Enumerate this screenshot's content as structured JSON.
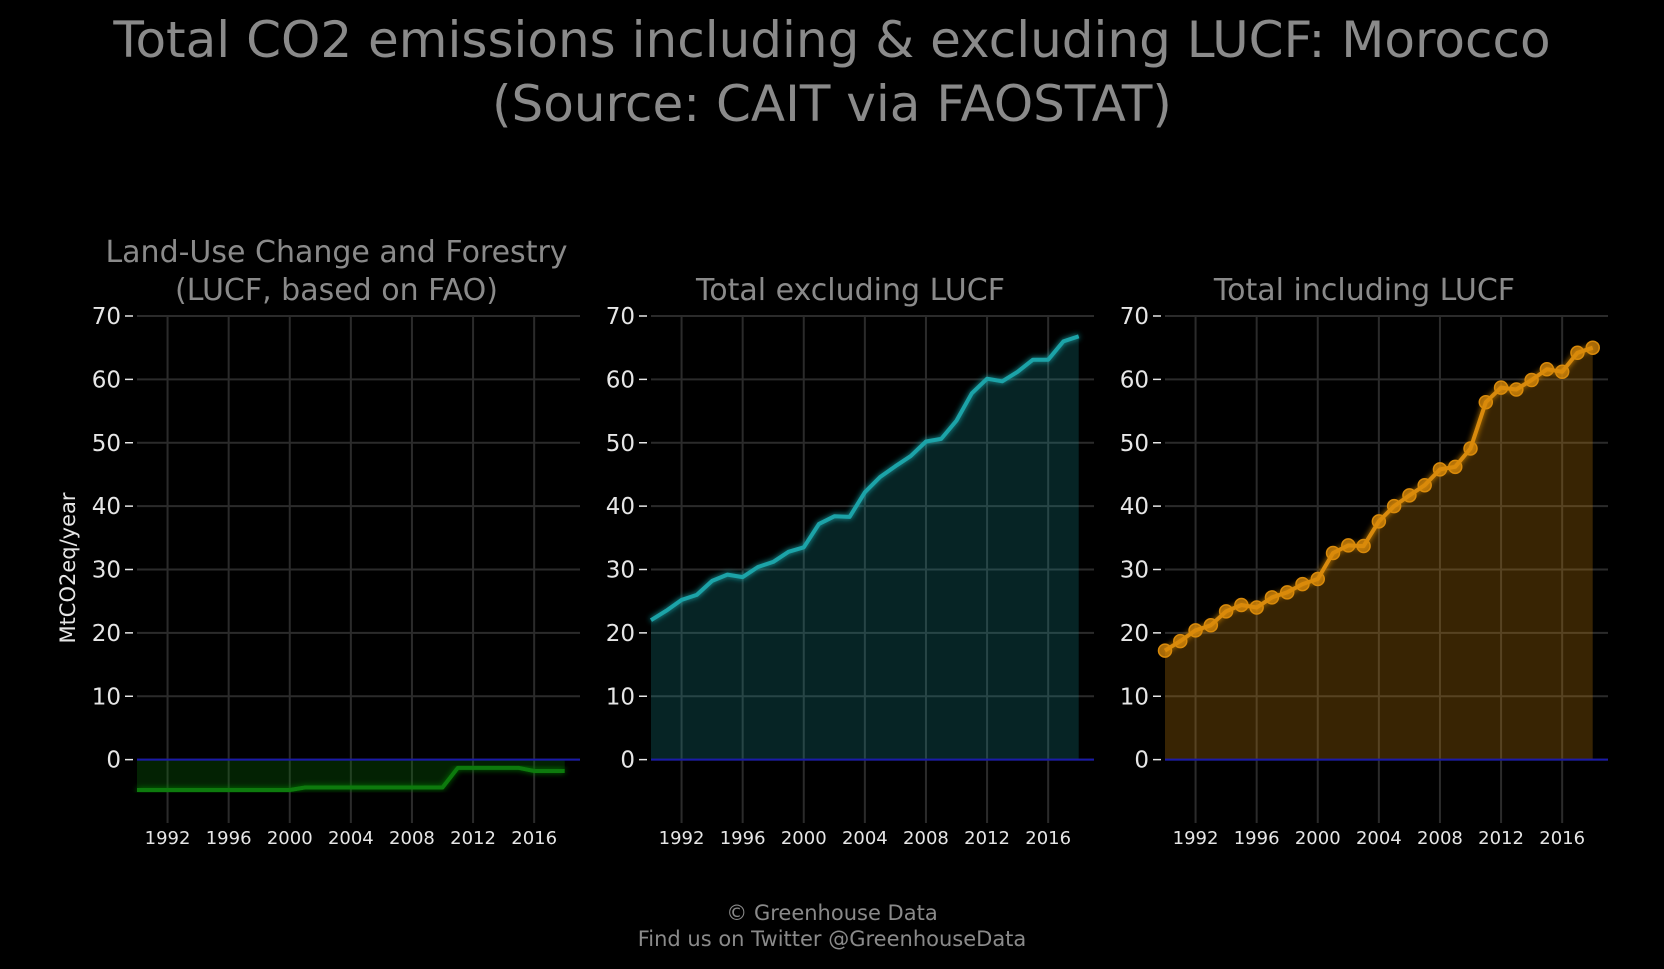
{
  "title": {
    "line1": "Total CO2 emissions including & excluding LUCF: Morocco",
    "line2": "(Source: CAIT via FAOSTAT)"
  },
  "footer": {
    "line1": "© Greenhouse Data",
    "line2": "Find us on Twitter @GreenhouseData"
  },
  "ylabel": "MtCO2eq/year",
  "colors": {
    "background": "#000000",
    "grid": "#2b2b2b",
    "zero_line": "#1a1aa8",
    "lucf": "#0a7a0a",
    "excl": "#1aa3a8",
    "incl": "#d98a0a"
  },
  "chart_data": [
    {
      "type": "area",
      "title": [
        "Land-Use Change and Forestry",
        "(LUCF, based on FAO)"
      ],
      "xlabel": "",
      "ylabel": "MtCO2eq/year",
      "xlim": [
        1990,
        2019
      ],
      "ylim": [
        -10,
        70
      ],
      "xticks": [
        1992,
        1996,
        2000,
        2004,
        2008,
        2012,
        2016
      ],
      "yticks": [
        0,
        10,
        20,
        30,
        40,
        50,
        60,
        70
      ],
      "markers": false,
      "series": [
        {
          "x": [
            1990,
            1991,
            1992,
            1993,
            1994,
            1995,
            1996,
            1997,
            1998,
            1999,
            2000,
            2001,
            2002,
            2003,
            2004,
            2005,
            2006,
            2007,
            2008,
            2009,
            2010,
            2011,
            2012,
            2013,
            2014,
            2015,
            2016,
            2017,
            2018
          ],
          "values": [
            -4.8,
            -4.8,
            -4.8,
            -4.8,
            -4.8,
            -4.8,
            -4.8,
            -4.8,
            -4.8,
            -4.8,
            -4.8,
            -4.4,
            -4.4,
            -4.4,
            -4.4,
            -4.4,
            -4.4,
            -4.4,
            -4.4,
            -4.4,
            -4.4,
            -1.3,
            -1.3,
            -1.3,
            -1.3,
            -1.3,
            -1.8,
            -1.8,
            -1.8
          ]
        }
      ]
    },
    {
      "type": "area",
      "title": [
        "Total excluding LUCF"
      ],
      "xlabel": "",
      "ylabel": "",
      "xlim": [
        1990,
        2019
      ],
      "ylim": [
        -10,
        70
      ],
      "xticks": [
        1992,
        1996,
        2000,
        2004,
        2008,
        2012,
        2016
      ],
      "yticks": [
        0,
        10,
        20,
        30,
        40,
        50,
        60,
        70
      ],
      "markers": false,
      "series": [
        {
          "x": [
            1990,
            1991,
            1992,
            1993,
            1994,
            1995,
            1996,
            1997,
            1998,
            1999,
            2000,
            2001,
            2002,
            2003,
            2004,
            2005,
            2006,
            2007,
            2008,
            2009,
            2010,
            2011,
            2012,
            2013,
            2014,
            2015,
            2016,
            2017,
            2018
          ],
          "values": [
            22,
            23.5,
            25.2,
            26,
            28.2,
            29.2,
            28.8,
            30.4,
            31.2,
            32.8,
            33.5,
            37.2,
            38.4,
            38.3,
            42.2,
            44.6,
            46.3,
            47.9,
            50.2,
            50.6,
            53.5,
            57.8,
            60.1,
            59.7,
            61.2,
            63.1,
            63.1,
            66,
            66.8
          ]
        }
      ]
    },
    {
      "type": "area",
      "title": [
        "Total including LUCF"
      ],
      "xlabel": "",
      "ylabel": "",
      "xlim": [
        1990,
        2019
      ],
      "ylim": [
        -10,
        70
      ],
      "xticks": [
        1992,
        1996,
        2000,
        2004,
        2008,
        2012,
        2016
      ],
      "yticks": [
        0,
        10,
        20,
        30,
        40,
        50,
        60,
        70
      ],
      "markers": true,
      "series": [
        {
          "x": [
            1990,
            1991,
            1992,
            1993,
            1994,
            1995,
            1996,
            1997,
            1998,
            1999,
            2000,
            2001,
            2002,
            2003,
            2004,
            2005,
            2006,
            2007,
            2008,
            2009,
            2010,
            2011,
            2012,
            2013,
            2014,
            2015,
            2016,
            2017,
            2018
          ],
          "values": [
            17.2,
            18.7,
            20.4,
            21.2,
            23.4,
            24.4,
            24,
            25.6,
            26.4,
            27.7,
            28.5,
            32.6,
            33.8,
            33.7,
            37.6,
            40,
            41.7,
            43.3,
            45.8,
            46.2,
            49.1,
            56.4,
            58.7,
            58.4,
            59.9,
            61.6,
            61.2,
            64.2,
            65
          ]
        }
      ]
    }
  ]
}
